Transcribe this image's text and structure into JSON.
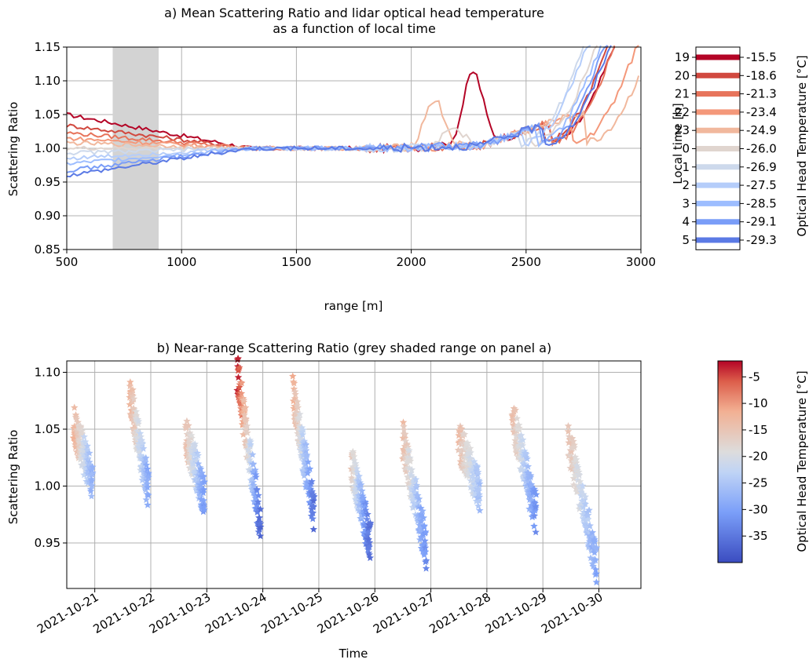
{
  "chart_data": [
    {
      "type": "line",
      "title": "a) Mean Scattering Ratio and lidar optical head temperature\nas a function of local time",
      "xlabel": "range [m]",
      "ylabel": "Scattering Ratio",
      "xlim": [
        500,
        3000
      ],
      "ylim": [
        0.85,
        1.15
      ],
      "xticks": [
        "500",
        "1000",
        "1500",
        "2000",
        "2500",
        "3000"
      ],
      "yticks": [
        "0.85",
        "0.90",
        "0.95",
        "1.00",
        "1.05",
        "1.10",
        "1.15"
      ],
      "grid": true,
      "shaded_range": [
        700,
        900
      ],
      "legend": {
        "placement": "right",
        "left_label": "Local time [h]",
        "right_label": "Optical Head Temperature [°C]",
        "hours": [
          "19",
          "20",
          "21",
          "22",
          "23",
          "0",
          "1",
          "2",
          "3",
          "4",
          "5"
        ],
        "temps": [
          "-15.5",
          "-18.6",
          "-21.3",
          "-23.4",
          "-24.9",
          "-26.0",
          "-26.9",
          "-27.5",
          "-28.5",
          "-29.1",
          "-29.3"
        ],
        "colors": [
          "#b40426",
          "#d1493f",
          "#e7745b",
          "#f4987a",
          "#f1b89d",
          "#e0d5cf",
          "#cdd9ec",
          "#b5cdfa",
          "#9dbdff",
          "#7a9df8",
          "#5b7ae5"
        ]
      },
      "series": [
        {
          "hour": "19",
          "near": 1.05,
          "bump_center": 2270,
          "bump_amp": 0.11,
          "rise_start": 2600
        },
        {
          "hour": "20",
          "near": 1.034,
          "bump_center": 2400,
          "bump_amp": 0.0,
          "rise_start": 2570
        },
        {
          "hour": "21",
          "near": 1.023,
          "bump_center": 2400,
          "bump_amp": 0.0,
          "rise_start": 2600
        },
        {
          "hour": "22",
          "near": 1.015,
          "bump_center": 2800,
          "bump_amp": 0.0,
          "rise_start": 2700
        },
        {
          "hour": "23",
          "near": 1.008,
          "bump_center": 2100,
          "bump_amp": 0.07,
          "rise_start": 2760
        },
        {
          "hour": "0",
          "near": 1.0,
          "bump_center": 2180,
          "bump_amp": 0.03,
          "rise_start": 2520
        },
        {
          "hour": "1",
          "near": 0.993,
          "bump_center": 2250,
          "bump_amp": 0.0,
          "rise_start": 2470
        },
        {
          "hour": "2",
          "near": 0.985,
          "bump_center": 2250,
          "bump_amp": 0.0,
          "rise_start": 2480
        },
        {
          "hour": "3",
          "near": 0.977,
          "bump_center": 2250,
          "bump_amp": 0.0,
          "rise_start": 2540
        },
        {
          "hour": "4",
          "near": 0.967,
          "bump_center": 2250,
          "bump_amp": 0.0,
          "rise_start": 2560
        },
        {
          "hour": "5",
          "near": 0.96,
          "bump_center": 2250,
          "bump_amp": 0.0,
          "rise_start": 2580
        }
      ]
    },
    {
      "type": "scatter",
      "title": "b) Near-range Scattering Ratio (grey shaded range on panel a)",
      "xlabel": "Time",
      "ylabel": "Scattering Ratio",
      "xlim": [
        "2021-10-20 12:00",
        "2021-10-30 18:00"
      ],
      "ylim": [
        0.91,
        1.11
      ],
      "xticks": [
        "2021-10-21",
        "2021-10-22",
        "2021-10-23",
        "2021-10-24",
        "2021-10-25",
        "2021-10-26",
        "2021-10-27",
        "2021-10-28",
        "2021-10-29",
        "2021-10-30"
      ],
      "yticks": [
        "0.95",
        "1.00",
        "1.05",
        "1.10"
      ],
      "grid": true,
      "marker": "star",
      "colorbar": {
        "label": "Optical Head Temperature [°C]",
        "range": [
          -40,
          -2
        ],
        "ticks": [
          "-5",
          "-10",
          "-15",
          "-20",
          "-25",
          "-30",
          "-35"
        ]
      },
      "nights": [
        {
          "date": "2021-10-20",
          "start_hour": 15,
          "end_hour": 23,
          "sr_start": 1.055,
          "sr_end": 1.005,
          "t_start": -12,
          "t_end": -28
        },
        {
          "date": "2021-10-21",
          "start_hour": 15,
          "end_hour": 23,
          "sr_start": 1.08,
          "sr_end": 0.995,
          "t_start": -12,
          "t_end": -29
        },
        {
          "date": "2021-10-22",
          "start_hour": 15,
          "end_hour": 23,
          "sr_start": 1.045,
          "sr_end": 0.99,
          "t_start": -14,
          "t_end": -31
        },
        {
          "date": "2021-10-23",
          "start_hour": 13,
          "end_hour": 23,
          "sr_start": 1.1,
          "sr_end": 0.965,
          "t_start": -3,
          "t_end": -37
        },
        {
          "date": "2021-10-24",
          "start_hour": 13,
          "end_hour": 22,
          "sr_start": 1.08,
          "sr_end": 0.975,
          "t_start": -12,
          "t_end": -36
        },
        {
          "date": "2021-10-25",
          "start_hour": 14,
          "end_hour": 22,
          "sr_start": 1.02,
          "sr_end": 0.95,
          "t_start": -16,
          "t_end": -37
        },
        {
          "date": "2021-10-26",
          "start_hour": 12,
          "end_hour": 22,
          "sr_start": 1.04,
          "sr_end": 0.945,
          "t_start": -14,
          "t_end": -32
        },
        {
          "date": "2021-10-27",
          "start_hour": 12,
          "end_hour": 21,
          "sr_start": 1.04,
          "sr_end": 0.995,
          "t_start": -14,
          "t_end": -26
        },
        {
          "date": "2021-10-28",
          "start_hour": 11,
          "end_hour": 21,
          "sr_start": 1.06,
          "sr_end": 0.975,
          "t_start": -14,
          "t_end": -32
        },
        {
          "date": "2021-10-29",
          "start_hour": 11,
          "end_hour": 23,
          "sr_start": 1.04,
          "sr_end": 0.93,
          "t_start": -15,
          "t_end": -29
        }
      ]
    }
  ]
}
